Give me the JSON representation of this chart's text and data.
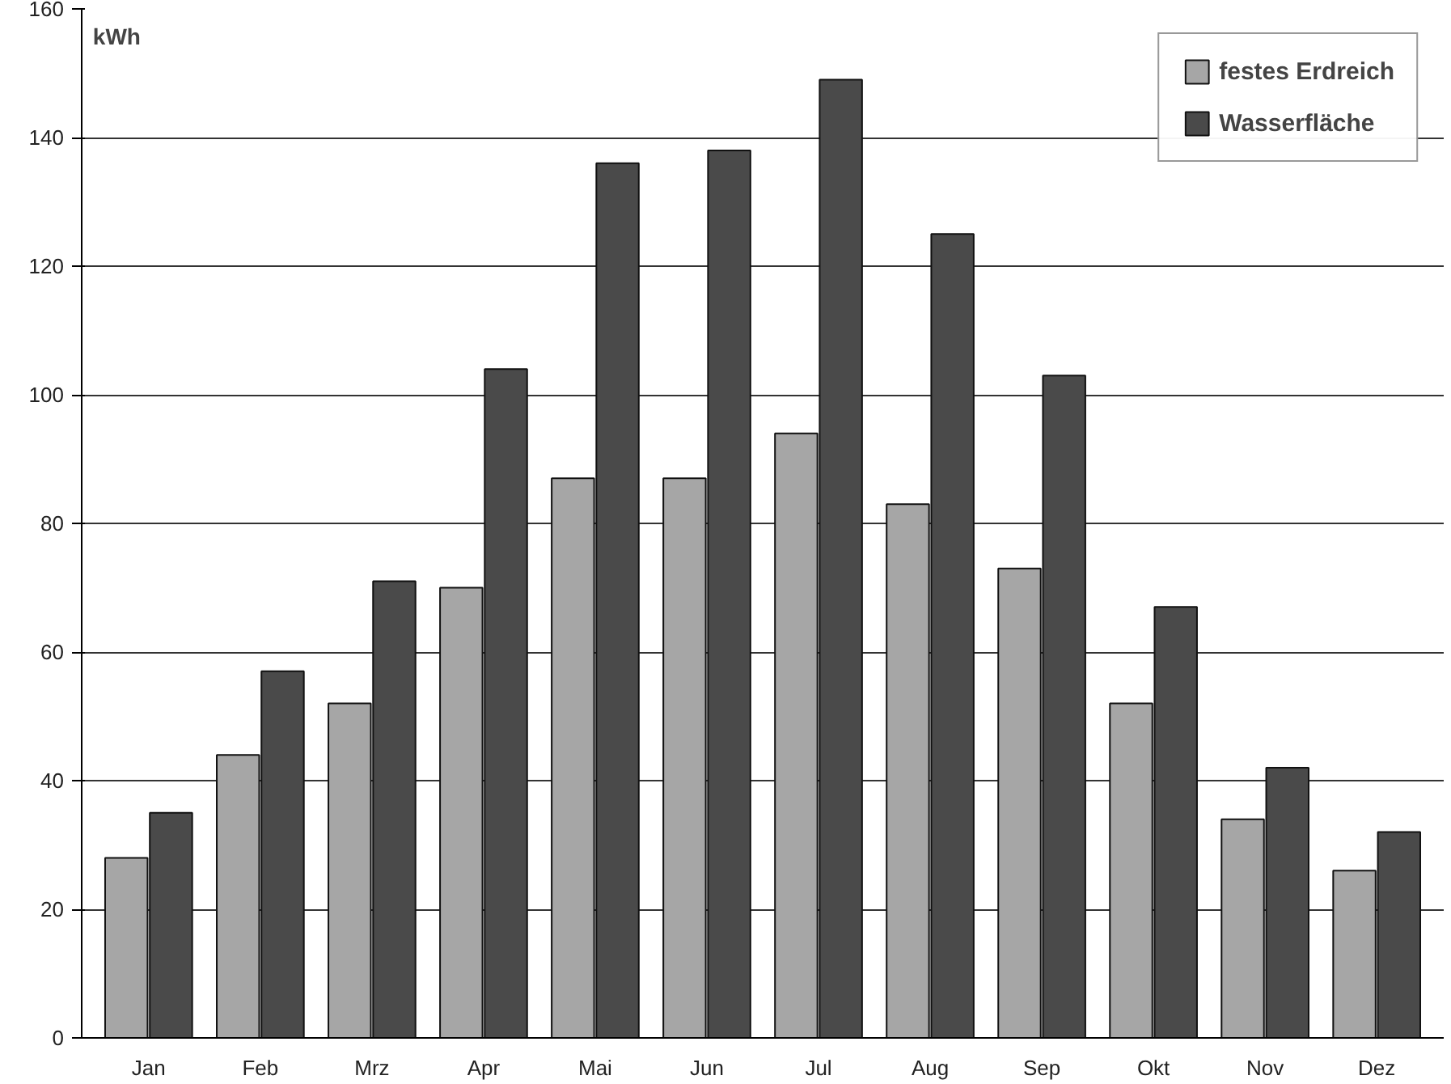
{
  "chart_data": {
    "type": "bar",
    "ylabel": "kWh",
    "categories": [
      "Jan",
      "Feb",
      "Mrz",
      "Apr",
      "Mai",
      "Jun",
      "Jul",
      "Aug",
      "Sep",
      "Okt",
      "Nov",
      "Dez"
    ],
    "series": [
      {
        "name": "festes Erdreich",
        "color": "#a6a6a6",
        "values": [
          28,
          44,
          52,
          70,
          87,
          87,
          94,
          83,
          73,
          52,
          34,
          26
        ]
      },
      {
        "name": "Wasserfläche",
        "color": "#4a4a4a",
        "values": [
          35,
          57,
          71,
          104,
          136,
          138,
          149,
          125,
          103,
          67,
          42,
          32
        ]
      }
    ],
    "ylim": [
      0,
      160
    ],
    "yticks": [
      0,
      20,
      40,
      60,
      80,
      100,
      120,
      140,
      160
    ],
    "grid": "y",
    "legend": "top right"
  }
}
